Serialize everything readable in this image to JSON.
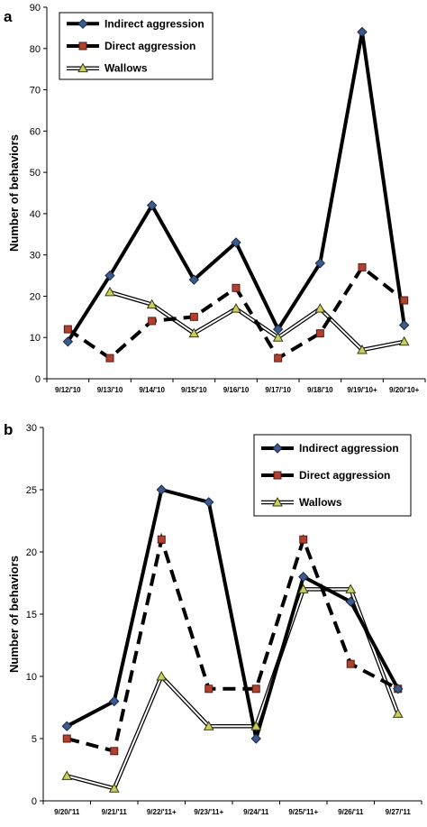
{
  "chart_data": [
    {
      "type": "line",
      "panel_label": "a",
      "ylabel": "Number of behaviors",
      "ylim": [
        0,
        90
      ],
      "yticks": [
        0,
        10,
        20,
        30,
        40,
        50,
        60,
        70,
        80,
        90
      ],
      "categories": [
        "9/12/'10",
        "9/13/'10",
        "9/14/'10",
        "9/15/'10",
        "9/16/'10",
        "9/17/'10",
        "9/18/'10",
        "9/19/'10+",
        "9/20/'10+"
      ],
      "legend_position": "top-left",
      "series": [
        {
          "name": "Indirect aggression",
          "values": [
            9,
            25,
            42,
            24,
            33,
            12,
            28,
            84,
            13
          ],
          "color": "#000000",
          "marker": "diamond",
          "marker_color": "#3c5a8c",
          "style": "solid"
        },
        {
          "name": "Direct aggression",
          "values": [
            12,
            5,
            14,
            15,
            22,
            5,
            11,
            27,
            19
          ],
          "color": "#000000",
          "marker": "square",
          "marker_color": "#b04030",
          "style": "dashed"
        },
        {
          "name": "Wallows",
          "values": [
            null,
            21,
            18,
            11,
            17,
            10,
            17,
            7,
            9
          ],
          "color": "#000000",
          "marker": "triangle",
          "marker_color": "#c8d060",
          "style": "double"
        }
      ]
    },
    {
      "type": "line",
      "panel_label": "b",
      "ylabel": "Number of behaviors",
      "ylim": [
        0,
        30
      ],
      "yticks": [
        0,
        5,
        10,
        15,
        20,
        25,
        30
      ],
      "categories": [
        "9/20/'11",
        "9/21/'11",
        "9/22/'11+",
        "9/23/'11+",
        "9/24/'11",
        "9/25/'11+",
        "9/26/'11",
        "9/27/'11"
      ],
      "legend_position": "top-right",
      "series": [
        {
          "name": "Indirect aggression",
          "values": [
            6,
            8,
            25,
            24,
            5,
            18,
            16,
            9
          ],
          "color": "#000000",
          "marker": "diamond",
          "marker_color": "#3c5a8c",
          "style": "solid"
        },
        {
          "name": "Direct aggression",
          "values": [
            5,
            4,
            21,
            9,
            9,
            21,
            11,
            9
          ],
          "color": "#000000",
          "marker": "square",
          "marker_color": "#b04030",
          "style": "dashed"
        },
        {
          "name": "Wallows",
          "values": [
            2,
            1,
            10,
            6,
            6,
            17,
            17,
            7
          ],
          "color": "#000000",
          "marker": "triangle",
          "marker_color": "#c8d060",
          "style": "double"
        }
      ]
    }
  ]
}
